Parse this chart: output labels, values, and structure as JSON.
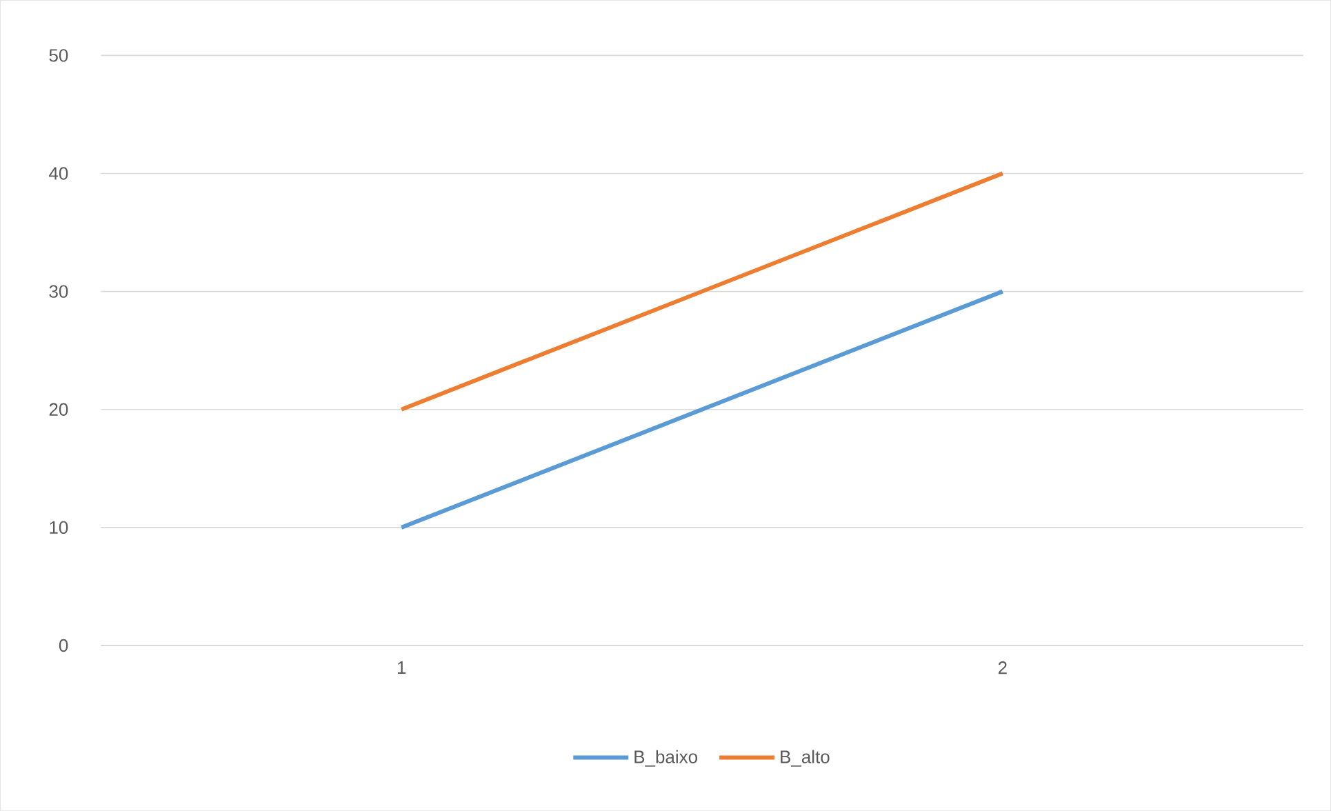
{
  "chart_data": {
    "type": "line",
    "categories": [
      "1",
      "2"
    ],
    "series": [
      {
        "name": "B_baixo",
        "color": "#5b9bd5",
        "values": [
          10,
          30
        ]
      },
      {
        "name": "B_alto",
        "color": "#ed7d31",
        "values": [
          20,
          40
        ]
      }
    ],
    "ylim": [
      0,
      50
    ],
    "yticks": [
      0,
      10,
      20,
      30,
      40,
      50
    ],
    "grid": "y",
    "legend": "bottom",
    "marker": "none",
    "line_style": "solid"
  }
}
